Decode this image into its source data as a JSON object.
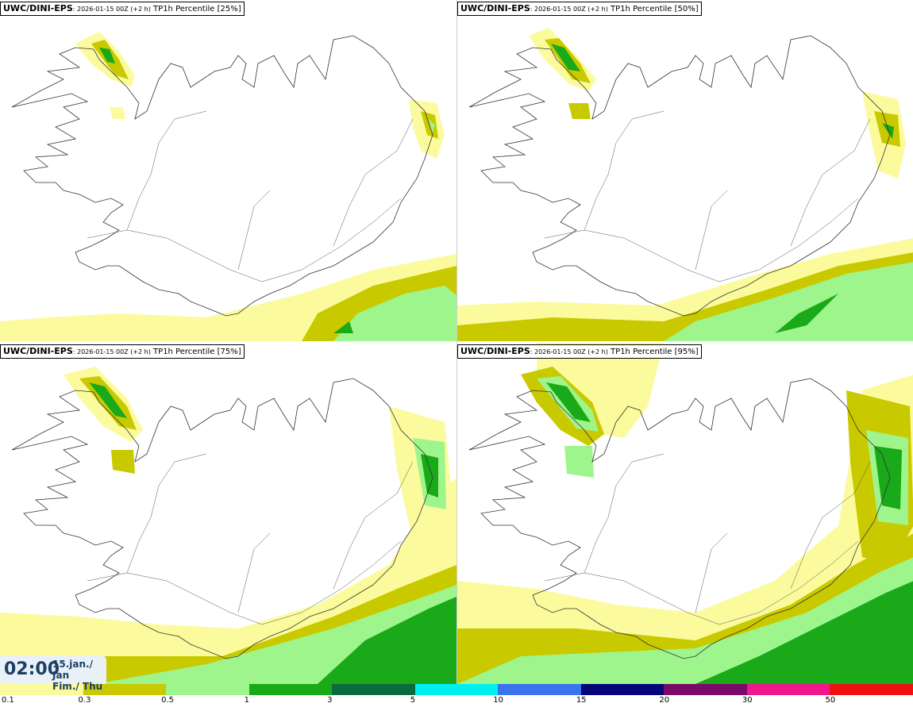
{
  "panels": [
    {
      "model": "UWC/DINI-EPS",
      "run": ": 2026-01-15 00Z (+2 h)",
      "product": " TP1h Percentile [25%]"
    },
    {
      "model": "UWC/DINI-EPS",
      "run": ": 2026-01-15 00Z (+2 h)",
      "product": " TP1h Percentile [50%]"
    },
    {
      "model": "UWC/DINI-EPS",
      "run": ": 2026-01-15 00Z (+2 h)",
      "product": " TP1h Percentile [75%]"
    },
    {
      "model": "UWC/DINI-EPS",
      "run": ": 2026-01-15 00Z (+2 h)",
      "product": " TP1h Percentile [95%]"
    }
  ],
  "time": {
    "hour": "02:00",
    "date_line1": "15.jan./ Jan",
    "date_line2": "Fim./ Thu"
  },
  "legend": {
    "labels": [
      "0.1",
      "0.3",
      "0.5",
      "1",
      "3",
      "5",
      "10",
      "15",
      "20",
      "30",
      "50"
    ],
    "colors": [
      "#fbfb9d",
      "#c9c900",
      "#9ef58c",
      "#19a919",
      "#0c6b3e",
      "#00f0f0",
      "#3a72f0",
      "#05057a",
      "#7a0a6a",
      "#f0188c",
      "#f01010"
    ]
  },
  "colors": {
    "light_yellow": "#fbfb9d",
    "olive": "#c9c900",
    "light_green": "#9ef58c",
    "green": "#19a919"
  }
}
